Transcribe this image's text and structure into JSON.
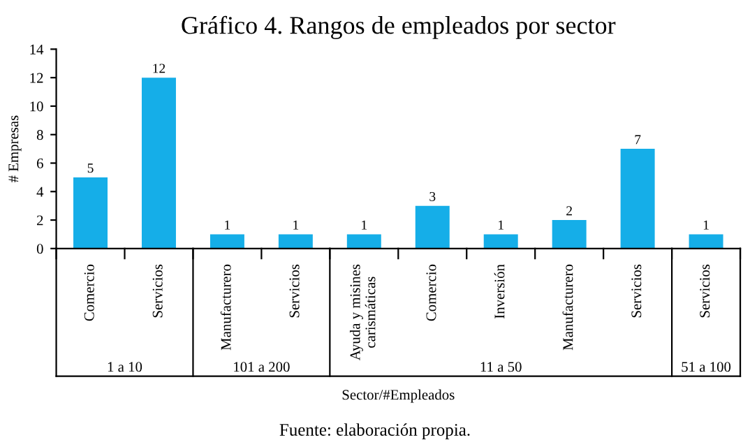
{
  "chart_data": {
    "type": "bar",
    "title": "Gráfico 4. Rangos de empleados por sector",
    "xlabel": "Sector/#Empleados",
    "ylabel": "# Empresas",
    "categories": [
      "Comercio",
      "Servicios",
      "Manufacturero",
      "Servicios",
      "Ayuda y misines\ncarismáticas",
      "Comercio",
      "Inversión",
      "Manufacturero",
      "Servicios",
      "Servicios"
    ],
    "values": [
      5,
      12,
      1,
      1,
      1,
      3,
      1,
      2,
      7,
      1
    ],
    "color": "#15aee8",
    "data_labels": true,
    "ylim": [
      0,
      14
    ],
    "yticks": [
      0,
      2,
      4,
      6,
      8,
      10,
      12,
      14
    ],
    "grid": false,
    "annotations": [
      "1 a 10",
      "101 a 200",
      "11 a 50",
      "51 a 100",
      "Fuente: elaboración propia."
    ]
  }
}
